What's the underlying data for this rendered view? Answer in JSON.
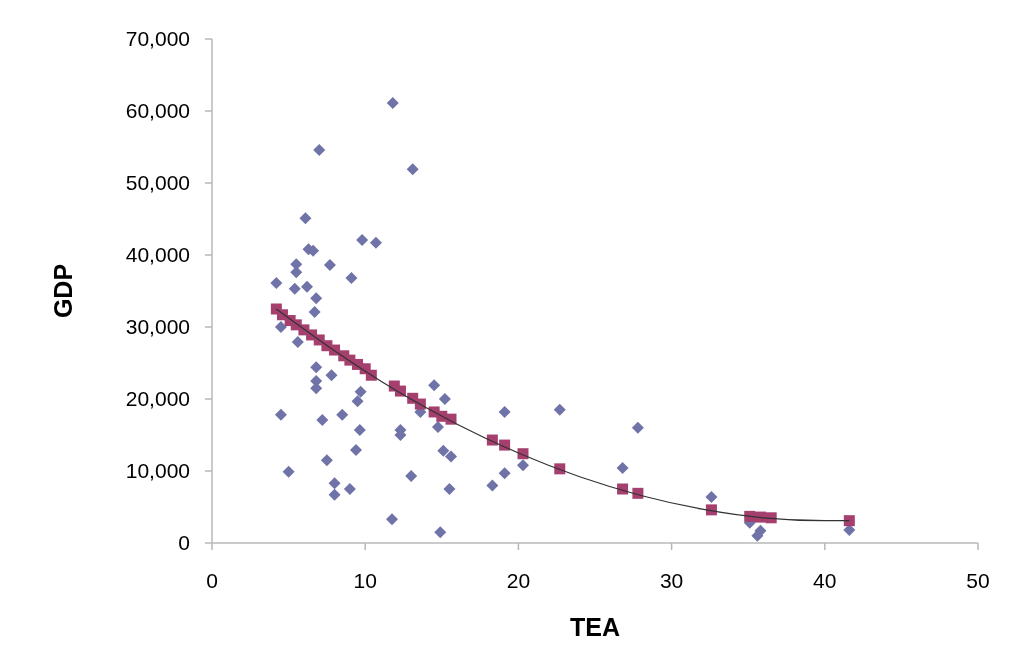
{
  "chart_data": {
    "type": "scatter",
    "xlabel": "TEA",
    "ylabel": "GDP",
    "xlim": [
      0,
      50
    ],
    "xticks": [
      0,
      10,
      20,
      30,
      40,
      50
    ],
    "ylim": [
      0,
      70000
    ],
    "yticks": [
      {
        "value": 0,
        "label": "0"
      },
      {
        "value": 10000,
        "label": "10,000"
      },
      {
        "value": 20000,
        "label": "20,000"
      },
      {
        "value": 30000,
        "label": "30,000"
      },
      {
        "value": 40000,
        "label": "40,000"
      },
      {
        "value": 50000,
        "label": "50,000"
      },
      {
        "value": 60000,
        "label": "60,000"
      },
      {
        "value": 70000,
        "label": "70,000"
      }
    ],
    "grid": false,
    "series": [
      {
        "type": "scatter",
        "marker": "diamond",
        "color": "#7073a8",
        "x": [
          4.2,
          4.5,
          4.5,
          5.0,
          6.1,
          7.0,
          11.8,
          13.1,
          6.3,
          6.6,
          5.5,
          5.5,
          7.7,
          9.1,
          9.8,
          10.7,
          5.4,
          6.2,
          6.8,
          6.7,
          5.6,
          6.8,
          6.8,
          7.8,
          6.8,
          9.7,
          9.5,
          9.65,
          7.2,
          8.5,
          9.4,
          7.5,
          8.0,
          8.0,
          9.0,
          11.75,
          13.0,
          12.3,
          12.3,
          13.6,
          14.5,
          15.2,
          14.75,
          15.1,
          15.6,
          15.5,
          14.9,
          19.1,
          22.7,
          27.8,
          26.8,
          20.3,
          19.1,
          18.3,
          32.6,
          35.1,
          35.8,
          35.6,
          41.6
        ],
        "values": [
          36100,
          30000,
          17800,
          9900,
          45100,
          54600,
          61100,
          51900,
          40800,
          40600,
          38700,
          37600,
          38600,
          36800,
          42100,
          41700,
          35300,
          35600,
          34000,
          32100,
          27900,
          24400,
          22500,
          23300,
          21500,
          21000,
          19700,
          15700,
          17100,
          17800,
          12900,
          11500,
          8300,
          6700,
          7500,
          3300,
          9300,
          15700,
          15000,
          18200,
          21900,
          20000,
          16100,
          12800,
          12000,
          7500,
          1500,
          18200,
          18500,
          16000,
          10400,
          10800,
          9700,
          8000,
          6400,
          2800,
          1700,
          1000,
          1800
        ]
      },
      {
        "type": "scatter",
        "marker": "square",
        "color": "#a53f6e",
        "x": [
          4.2,
          4.6,
          5.1,
          5.5,
          6.0,
          6.5,
          7.0,
          7.5,
          8.0,
          8.6,
          9.0,
          9.5,
          10.0,
          10.4,
          11.9,
          12.3,
          13.1,
          13.6,
          14.5,
          15.0,
          15.6,
          18.3,
          19.1,
          20.3,
          22.7,
          26.8,
          27.8,
          32.6,
          35.1,
          35.8,
          36.5,
          41.6
        ],
        "values": [
          32500,
          31700,
          30900,
          30300,
          29600,
          28900,
          28200,
          27400,
          26800,
          26000,
          25400,
          24800,
          24200,
          23300,
          21800,
          21100,
          20100,
          19300,
          18200,
          17600,
          17200,
          14300,
          13600,
          12400,
          10300,
          7500,
          6900,
          4600,
          3700,
          3600,
          3500,
          3100
        ]
      },
      {
        "type": "line",
        "marker": "none",
        "line_style": "solid",
        "color": "#333333",
        "x": [
          4.2,
          8,
          12,
          16,
          20,
          24,
          28,
          32,
          36,
          40,
          41.6
        ],
        "values": [
          32500,
          26700,
          21200,
          16500,
          12500,
          9200,
          6600,
          4700,
          3500,
          3100,
          3100
        ]
      }
    ]
  }
}
